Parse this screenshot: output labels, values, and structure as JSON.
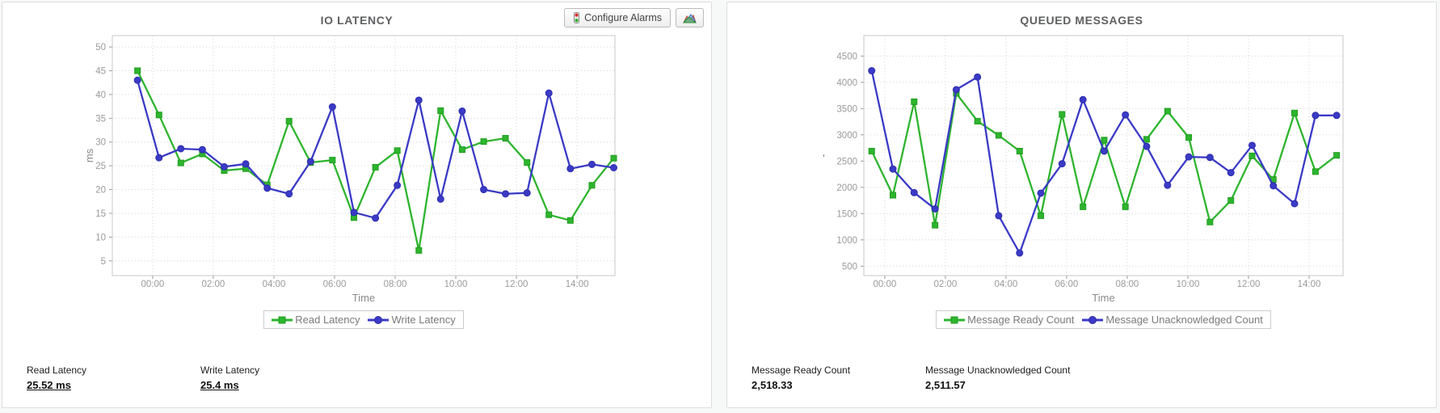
{
  "toolbar": {
    "configure_alarms_label": "Configure Alarms",
    "traffic_light_icon": "traffic-light",
    "chart_button_icon": "area-chart"
  },
  "panels": [
    {
      "name": "io-latency",
      "stats": [
        {
          "label": "Read Latency",
          "value": "25.52 ms"
        },
        {
          "label": "Write Latency",
          "value": "25.4 ms"
        }
      ]
    },
    {
      "name": "queued-messages",
      "stats": [
        {
          "label": "Message Ready Count",
          "value": "2,518.33"
        },
        {
          "label": "Message Unacknowledged Count",
          "value": "2,511.57"
        }
      ]
    }
  ],
  "chart_data": [
    {
      "type": "line",
      "title": "IO LATENCY",
      "xlabel": "Time",
      "ylabel": "ms",
      "grid": true,
      "legend_position": "bottom",
      "xlim": [
        -1.33,
        15.25
      ],
      "ylim": [
        1.9,
        52.4
      ],
      "yticks": [
        5,
        10,
        15,
        20,
        25,
        30,
        35,
        40,
        45,
        50
      ],
      "xticks": [
        {
          "v": 0,
          "label": "00:00"
        },
        {
          "v": 2,
          "label": "02:00"
        },
        {
          "v": 4,
          "label": "04:00"
        },
        {
          "v": 6,
          "label": "06:00"
        },
        {
          "v": 8,
          "label": "08:00"
        },
        {
          "v": 10,
          "label": "10:00"
        },
        {
          "v": 12,
          "label": "12:00"
        },
        {
          "v": 14,
          "label": "14:00"
        }
      ],
      "x": [
        -0.5,
        0.21,
        0.93,
        1.64,
        2.36,
        3.07,
        3.78,
        4.5,
        5.21,
        5.93,
        6.64,
        7.35,
        8.07,
        8.78,
        9.5,
        10.21,
        10.92,
        11.64,
        12.35,
        13.07,
        13.78,
        14.49,
        15.21
      ],
      "series": [
        {
          "name": "Read Latency",
          "marker": "square",
          "color": "#2eb42e",
          "edge": "#1f9e1f",
          "values": [
            45,
            35.7,
            25.6,
            27.5,
            24,
            24.4,
            21,
            34.4,
            25.7,
            26.2,
            14.1,
            24.7,
            28.2,
            7.2,
            36.6,
            28.4,
            30.1,
            30.8,
            25.7,
            14.7,
            13.5,
            20.9,
            26.6
          ]
        },
        {
          "name": "Write Latency",
          "marker": "circle",
          "color": "#3a3ac6",
          "edge": "#2d2daa",
          "values": [
            43,
            26.7,
            28.6,
            28.4,
            24.8,
            25.4,
            20.3,
            19.1,
            25.9,
            37.4,
            15.2,
            14,
            20.9,
            38.8,
            18,
            36.5,
            20,
            19.1,
            19.3,
            40.3,
            24.4,
            25.3,
            24.6
          ]
        }
      ]
    },
    {
      "type": "line",
      "title": "QUEUED MESSAGES",
      "xlabel": "Time",
      "ylabel": "-",
      "grid": true,
      "legend_position": "bottom",
      "xlim": [
        -0.69,
        15.12
      ],
      "ylim": [
        320,
        4890
      ],
      "yticks": [
        500,
        1000,
        1500,
        2000,
        2500,
        3000,
        3500,
        4000,
        4500
      ],
      "xticks": [
        {
          "v": 0,
          "label": "00:00"
        },
        {
          "v": 2,
          "label": "02:00"
        },
        {
          "v": 4,
          "label": "04:00"
        },
        {
          "v": 6,
          "label": "06:00"
        },
        {
          "v": 8,
          "label": "08:00"
        },
        {
          "v": 10,
          "label": "10:00"
        },
        {
          "v": 12,
          "label": "12:00"
        },
        {
          "v": 14,
          "label": "14:00"
        }
      ],
      "x": [
        -0.43,
        0.27,
        0.97,
        1.66,
        2.36,
        3.06,
        3.76,
        4.45,
        5.15,
        5.85,
        6.54,
        7.24,
        7.94,
        8.64,
        9.33,
        10.03,
        10.73,
        11.42,
        12.12,
        12.82,
        13.52,
        14.21,
        14.91
      ],
      "series": [
        {
          "name": "Message Ready Count",
          "marker": "square",
          "color": "#2eb42e",
          "edge": "#1f9e1f",
          "values": [
            2690,
            1850,
            3630,
            1280,
            3790,
            3260,
            2990,
            2690,
            1460,
            3390,
            1630,
            2900,
            1630,
            2915,
            3450,
            2950,
            1340,
            1750,
            2600,
            2150,
            3415,
            2300,
            2610
          ]
        },
        {
          "name": "Message Unacknowledged Count",
          "marker": "circle",
          "color": "#3a3ac6",
          "edge": "#2d2daa",
          "values": [
            4220,
            2350,
            1900,
            1590,
            3860,
            4100,
            1460,
            750,
            1890,
            2450,
            3670,
            2690,
            3380,
            2780,
            2040,
            2580,
            2570,
            2280,
            2800,
            2030,
            1690,
            3370,
            3370
          ]
        }
      ]
    }
  ]
}
